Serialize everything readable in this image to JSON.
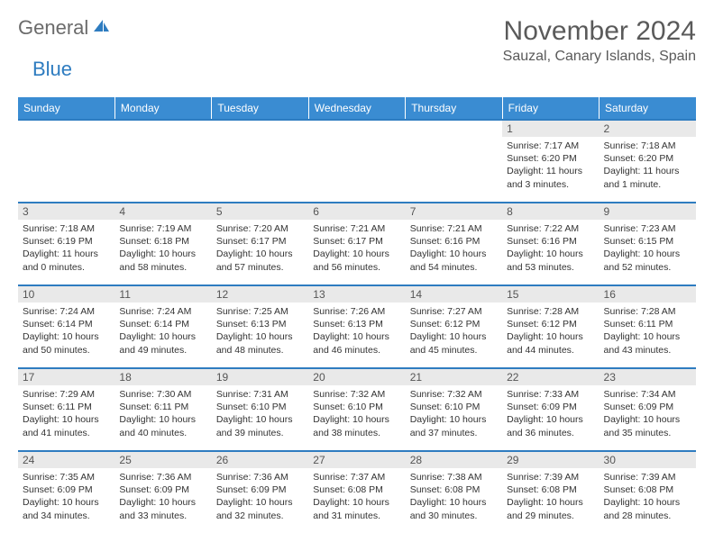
{
  "logo": {
    "general": "General",
    "blue": "Blue"
  },
  "title": "November 2024",
  "location": "Sauzal, Canary Islands, Spain",
  "colors": {
    "header_bg": "#3a8cd2",
    "header_text": "#ffffff",
    "border": "#2e7cc0",
    "daynum_bg": "#e9e9e9",
    "text": "#333333",
    "title_text": "#5a5a5a"
  },
  "typography": {
    "title_fontsize": 30,
    "location_fontsize": 16,
    "header_fontsize": 12,
    "daynum_fontsize": 12,
    "cell_fontsize": 10.5
  },
  "day_headers": [
    "Sunday",
    "Monday",
    "Tuesday",
    "Wednesday",
    "Thursday",
    "Friday",
    "Saturday"
  ],
  "weeks": [
    [
      null,
      null,
      null,
      null,
      null,
      {
        "n": "1",
        "sr": "7:17 AM",
        "ss": "6:20 PM",
        "dl": "11 hours and 3 minutes."
      },
      {
        "n": "2",
        "sr": "7:18 AM",
        "ss": "6:20 PM",
        "dl": "11 hours and 1 minute."
      }
    ],
    [
      {
        "n": "3",
        "sr": "7:18 AM",
        "ss": "6:19 PM",
        "dl": "11 hours and 0 minutes."
      },
      {
        "n": "4",
        "sr": "7:19 AM",
        "ss": "6:18 PM",
        "dl": "10 hours and 58 minutes."
      },
      {
        "n": "5",
        "sr": "7:20 AM",
        "ss": "6:17 PM",
        "dl": "10 hours and 57 minutes."
      },
      {
        "n": "6",
        "sr": "7:21 AM",
        "ss": "6:17 PM",
        "dl": "10 hours and 56 minutes."
      },
      {
        "n": "7",
        "sr": "7:21 AM",
        "ss": "6:16 PM",
        "dl": "10 hours and 54 minutes."
      },
      {
        "n": "8",
        "sr": "7:22 AM",
        "ss": "6:16 PM",
        "dl": "10 hours and 53 minutes."
      },
      {
        "n": "9",
        "sr": "7:23 AM",
        "ss": "6:15 PM",
        "dl": "10 hours and 52 minutes."
      }
    ],
    [
      {
        "n": "10",
        "sr": "7:24 AM",
        "ss": "6:14 PM",
        "dl": "10 hours and 50 minutes."
      },
      {
        "n": "11",
        "sr": "7:24 AM",
        "ss": "6:14 PM",
        "dl": "10 hours and 49 minutes."
      },
      {
        "n": "12",
        "sr": "7:25 AM",
        "ss": "6:13 PM",
        "dl": "10 hours and 48 minutes."
      },
      {
        "n": "13",
        "sr": "7:26 AM",
        "ss": "6:13 PM",
        "dl": "10 hours and 46 minutes."
      },
      {
        "n": "14",
        "sr": "7:27 AM",
        "ss": "6:12 PM",
        "dl": "10 hours and 45 minutes."
      },
      {
        "n": "15",
        "sr": "7:28 AM",
        "ss": "6:12 PM",
        "dl": "10 hours and 44 minutes."
      },
      {
        "n": "16",
        "sr": "7:28 AM",
        "ss": "6:11 PM",
        "dl": "10 hours and 43 minutes."
      }
    ],
    [
      {
        "n": "17",
        "sr": "7:29 AM",
        "ss": "6:11 PM",
        "dl": "10 hours and 41 minutes."
      },
      {
        "n": "18",
        "sr": "7:30 AM",
        "ss": "6:11 PM",
        "dl": "10 hours and 40 minutes."
      },
      {
        "n": "19",
        "sr": "7:31 AM",
        "ss": "6:10 PM",
        "dl": "10 hours and 39 minutes."
      },
      {
        "n": "20",
        "sr": "7:32 AM",
        "ss": "6:10 PM",
        "dl": "10 hours and 38 minutes."
      },
      {
        "n": "21",
        "sr": "7:32 AM",
        "ss": "6:10 PM",
        "dl": "10 hours and 37 minutes."
      },
      {
        "n": "22",
        "sr": "7:33 AM",
        "ss": "6:09 PM",
        "dl": "10 hours and 36 minutes."
      },
      {
        "n": "23",
        "sr": "7:34 AM",
        "ss": "6:09 PM",
        "dl": "10 hours and 35 minutes."
      }
    ],
    [
      {
        "n": "24",
        "sr": "7:35 AM",
        "ss": "6:09 PM",
        "dl": "10 hours and 34 minutes."
      },
      {
        "n": "25",
        "sr": "7:36 AM",
        "ss": "6:09 PM",
        "dl": "10 hours and 33 minutes."
      },
      {
        "n": "26",
        "sr": "7:36 AM",
        "ss": "6:09 PM",
        "dl": "10 hours and 32 minutes."
      },
      {
        "n": "27",
        "sr": "7:37 AM",
        "ss": "6:08 PM",
        "dl": "10 hours and 31 minutes."
      },
      {
        "n": "28",
        "sr": "7:38 AM",
        "ss": "6:08 PM",
        "dl": "10 hours and 30 minutes."
      },
      {
        "n": "29",
        "sr": "7:39 AM",
        "ss": "6:08 PM",
        "dl": "10 hours and 29 minutes."
      },
      {
        "n": "30",
        "sr": "7:39 AM",
        "ss": "6:08 PM",
        "dl": "10 hours and 28 minutes."
      }
    ]
  ],
  "labels": {
    "sunrise": "Sunrise: ",
    "sunset": "Sunset: ",
    "daylight": "Daylight: "
  }
}
